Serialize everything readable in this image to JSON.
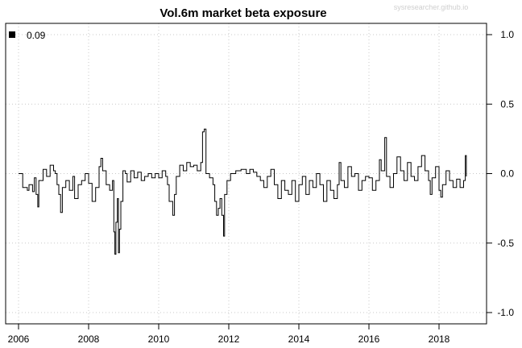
{
  "chart_data": {
    "type": "line",
    "title": "Vol.6m market beta exposure",
    "watermark": "sysresearcher.github.io",
    "xlabel": "",
    "ylabel": "",
    "xlim": [
      2006,
      2019.25
    ],
    "ylim": [
      -1.0,
      1.0
    ],
    "x_ticks": [
      2006,
      2008,
      2010,
      2012,
      2014,
      2016,
      2018
    ],
    "x_tick_labels": [
      "2006",
      "2008",
      "2010",
      "2012",
      "2014",
      "2016",
      "2018"
    ],
    "y_ticks": [
      1.0,
      0.5,
      0.0,
      -0.5,
      -1.0
    ],
    "y_tick_labels": [
      "1.0",
      "0.5",
      "0.0",
      "-0.5",
      "-1.0"
    ],
    "y_axis_side": "right",
    "grid": true,
    "legend": {
      "position": "top-left",
      "label": "0.09",
      "marker": "black-square"
    },
    "series": [
      {
        "color": "#000000",
        "points": [
          [
            2006.0,
            0.0
          ],
          [
            2006.1,
            0.0
          ],
          [
            2006.12,
            -0.1
          ],
          [
            2006.25,
            -0.12
          ],
          [
            2006.3,
            -0.08
          ],
          [
            2006.4,
            -0.13
          ],
          [
            2006.45,
            -0.03
          ],
          [
            2006.5,
            -0.15
          ],
          [
            2006.55,
            -0.24
          ],
          [
            2006.58,
            -0.05
          ],
          [
            2006.7,
            0.03
          ],
          [
            2006.8,
            -0.02
          ],
          [
            2006.9,
            0.06
          ],
          [
            2007.0,
            0.02
          ],
          [
            2007.05,
            0.0
          ],
          [
            2007.1,
            -0.08
          ],
          [
            2007.15,
            -0.15
          ],
          [
            2007.2,
            -0.28
          ],
          [
            2007.25,
            -0.1
          ],
          [
            2007.35,
            -0.05
          ],
          [
            2007.45,
            -0.12
          ],
          [
            2007.55,
            -0.02
          ],
          [
            2007.6,
            -0.18
          ],
          [
            2007.7,
            -0.08
          ],
          [
            2007.8,
            -0.05
          ],
          [
            2007.9,
            0.0
          ],
          [
            2008.0,
            -0.07
          ],
          [
            2008.1,
            -0.2
          ],
          [
            2008.2,
            -0.1
          ],
          [
            2008.3,
            0.05
          ],
          [
            2008.35,
            0.11
          ],
          [
            2008.4,
            0.02
          ],
          [
            2008.5,
            -0.08
          ],
          [
            2008.6,
            -0.12
          ],
          [
            2008.68,
            -0.05
          ],
          [
            2008.72,
            -0.42
          ],
          [
            2008.75,
            -0.58
          ],
          [
            2008.78,
            -0.35
          ],
          [
            2008.82,
            -0.18
          ],
          [
            2008.85,
            -0.57
          ],
          [
            2008.88,
            -0.4
          ],
          [
            2008.92,
            -0.2
          ],
          [
            2008.98,
            0.02
          ],
          [
            2009.05,
            0.0
          ],
          [
            2009.1,
            -0.06
          ],
          [
            2009.2,
            0.02
          ],
          [
            2009.3,
            -0.03
          ],
          [
            2009.4,
            0.01
          ],
          [
            2009.5,
            -0.05
          ],
          [
            2009.6,
            -0.02
          ],
          [
            2009.7,
            0.0
          ],
          [
            2009.8,
            -0.03
          ],
          [
            2009.9,
            0.0
          ],
          [
            2010.0,
            -0.03
          ],
          [
            2010.1,
            0.02
          ],
          [
            2010.2,
            -0.02
          ],
          [
            2010.25,
            -0.08
          ],
          [
            2010.3,
            -0.2
          ],
          [
            2010.4,
            -0.3
          ],
          [
            2010.45,
            -0.15
          ],
          [
            2010.5,
            -0.02
          ],
          [
            2010.6,
            0.06
          ],
          [
            2010.7,
            0.02
          ],
          [
            2010.8,
            0.08
          ],
          [
            2010.9,
            0.05
          ],
          [
            2011.0,
            0.06
          ],
          [
            2011.1,
            0.02
          ],
          [
            2011.2,
            0.08
          ],
          [
            2011.25,
            0.3
          ],
          [
            2011.3,
            0.32
          ],
          [
            2011.35,
            0.0
          ],
          [
            2011.45,
            -0.03
          ],
          [
            2011.55,
            -0.08
          ],
          [
            2011.6,
            -0.2
          ],
          [
            2011.65,
            -0.3
          ],
          [
            2011.7,
            -0.25
          ],
          [
            2011.75,
            -0.18
          ],
          [
            2011.8,
            -0.3
          ],
          [
            2011.85,
            -0.45
          ],
          [
            2011.88,
            -0.15
          ],
          [
            2011.95,
            -0.05
          ],
          [
            2012.05,
            0.0
          ],
          [
            2012.2,
            0.02
          ],
          [
            2012.35,
            0.03
          ],
          [
            2012.5,
            0.0
          ],
          [
            2012.6,
            0.03
          ],
          [
            2012.7,
            0.01
          ],
          [
            2012.8,
            -0.02
          ],
          [
            2012.9,
            -0.05
          ],
          [
            2013.0,
            -0.1
          ],
          [
            2013.1,
            -0.02
          ],
          [
            2013.2,
            0.03
          ],
          [
            2013.3,
            -0.08
          ],
          [
            2013.4,
            -0.18
          ],
          [
            2013.5,
            -0.05
          ],
          [
            2013.6,
            -0.12
          ],
          [
            2013.7,
            -0.15
          ],
          [
            2013.8,
            -0.05
          ],
          [
            2013.9,
            -0.2
          ],
          [
            2014.0,
            -0.08
          ],
          [
            2014.1,
            -0.02
          ],
          [
            2014.2,
            -0.15
          ],
          [
            2014.3,
            -0.05
          ],
          [
            2014.4,
            -0.1
          ],
          [
            2014.5,
            0.0
          ],
          [
            2014.6,
            -0.08
          ],
          [
            2014.7,
            -0.2
          ],
          [
            2014.8,
            -0.05
          ],
          [
            2014.9,
            -0.12
          ],
          [
            2015.0,
            -0.18
          ],
          [
            2015.1,
            -0.08
          ],
          [
            2015.15,
            0.08
          ],
          [
            2015.2,
            -0.05
          ],
          [
            2015.3,
            -0.1
          ],
          [
            2015.4,
            0.05
          ],
          [
            2015.5,
            -0.02
          ],
          [
            2015.6,
            0.0
          ],
          [
            2015.7,
            -0.12
          ],
          [
            2015.8,
            -0.05
          ],
          [
            2015.9,
            -0.02
          ],
          [
            2016.0,
            -0.03
          ],
          [
            2016.1,
            -0.12
          ],
          [
            2016.2,
            -0.05
          ],
          [
            2016.3,
            0.1
          ],
          [
            2016.35,
            0.02
          ],
          [
            2016.45,
            0.26
          ],
          [
            2016.5,
            -0.02
          ],
          [
            2016.6,
            -0.1
          ],
          [
            2016.7,
            0.0
          ],
          [
            2016.8,
            0.12
          ],
          [
            2016.9,
            0.02
          ],
          [
            2017.0,
            -0.05
          ],
          [
            2017.1,
            0.08
          ],
          [
            2017.2,
            -0.02
          ],
          [
            2017.3,
            -0.05
          ],
          [
            2017.4,
            0.05
          ],
          [
            2017.5,
            0.13
          ],
          [
            2017.6,
            0.02
          ],
          [
            2017.7,
            -0.05
          ],
          [
            2017.75,
            -0.15
          ],
          [
            2017.8,
            -0.03
          ],
          [
            2017.9,
            0.05
          ],
          [
            2018.0,
            -0.12
          ],
          [
            2018.05,
            -0.17
          ],
          [
            2018.1,
            -0.08
          ],
          [
            2018.2,
            0.02
          ],
          [
            2018.3,
            -0.05
          ],
          [
            2018.4,
            -0.1
          ],
          [
            2018.5,
            -0.04
          ],
          [
            2018.6,
            -0.1
          ],
          [
            2018.7,
            -0.05
          ],
          [
            2018.75,
            0.13
          ],
          [
            2018.78,
            -0.02
          ]
        ]
      }
    ]
  }
}
